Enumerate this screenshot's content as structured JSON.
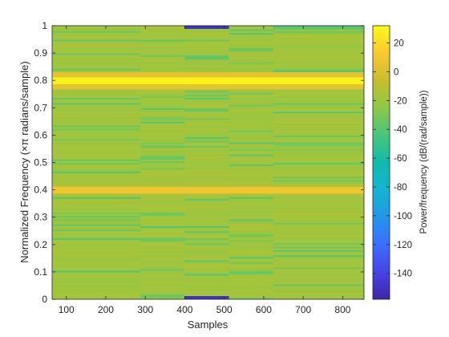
{
  "chart_data": {
    "type": "heatmap",
    "title": "",
    "xlabel": "Samples",
    "ylabel": "Normalized Frequency  (×π radians/sample)",
    "xlim": [
      64,
      854
    ],
    "ylim": [
      0,
      1
    ],
    "x_ticks": [
      100,
      200,
      300,
      400,
      500,
      600,
      700,
      800
    ],
    "y_ticks": [
      0,
      0.1,
      0.2,
      0.3,
      0.4,
      0.5,
      0.6,
      0.7,
      0.8,
      0.9,
      1
    ],
    "x_segments": [
      [
        64,
        288
      ],
      [
        288,
        400
      ],
      [
        400,
        512
      ],
      [
        512,
        624
      ],
      [
        624,
        854
      ]
    ],
    "baseline_power_db": -18,
    "signal_bands": [
      {
        "frequency": 0.8,
        "width": 0.03,
        "power_db": 30
      },
      {
        "frequency": 0.4,
        "width": 0.025,
        "power_db": 10
      }
    ],
    "segment_minima": [
      {
        "segment": 2,
        "frequencies": [
          0.0,
          1.0
        ],
        "power_db": -150
      }
    ],
    "colorbar": {
      "label": "Power/frequency (dB/(rad/sample))",
      "range": [
        -158,
        32
      ],
      "ticks": [
        20,
        0,
        -20,
        -40,
        -60,
        -80,
        -100,
        -120,
        -140
      ]
    }
  }
}
